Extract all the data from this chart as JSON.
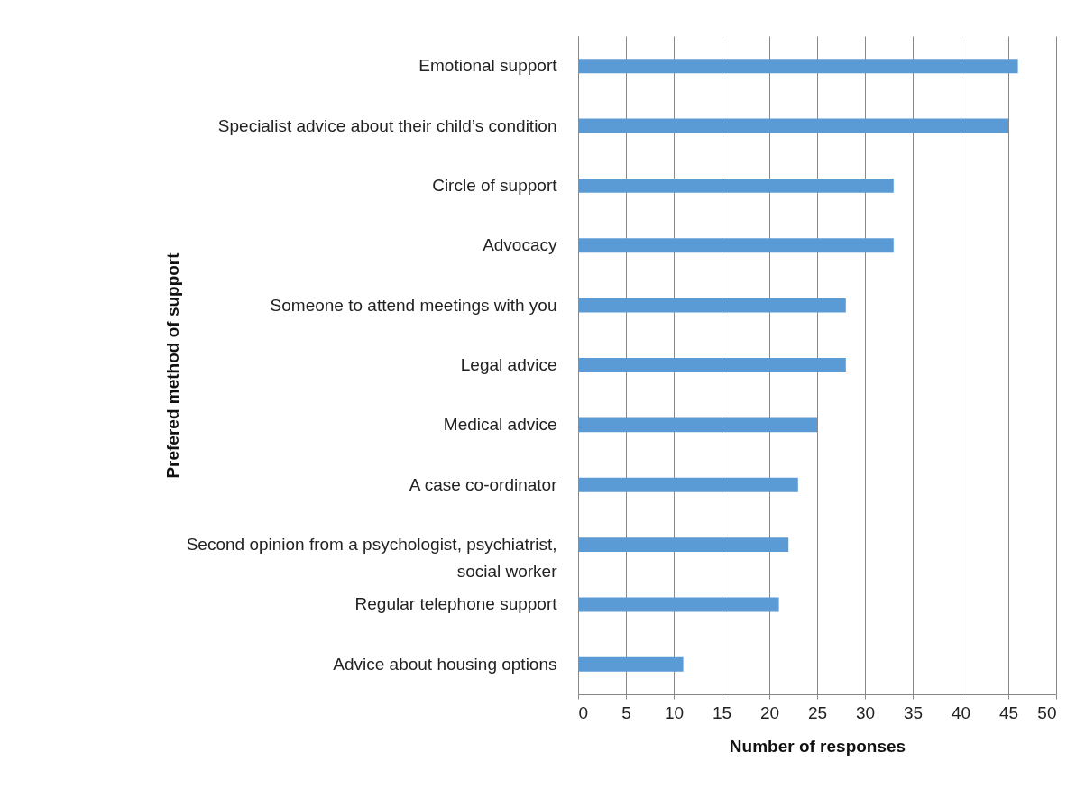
{
  "chart_data": {
    "type": "bar",
    "orientation": "horizontal",
    "xlabel": "Number of responses",
    "ylabel": "Prefered method of support",
    "categories": [
      "Emotional support",
      "Specialist advice about their child’s condition",
      "Circle of support",
      "Advocacy",
      "Someone to attend meetings with you",
      "Legal advice",
      "Medical advice",
      "A case co-ordinator",
      "Second opinion from a psychologist, psychiatrist, social worker",
      "Regular telephone support",
      "Advice about housing options"
    ],
    "values": [
      46,
      45,
      33,
      33,
      28,
      28,
      25,
      23,
      22,
      21,
      11
    ],
    "color": "#5b9bd5",
    "xlim": [
      0,
      50
    ],
    "xticks": [
      0,
      5,
      10,
      15,
      20,
      25,
      30,
      35,
      40,
      45,
      50
    ],
    "grid": "x"
  }
}
